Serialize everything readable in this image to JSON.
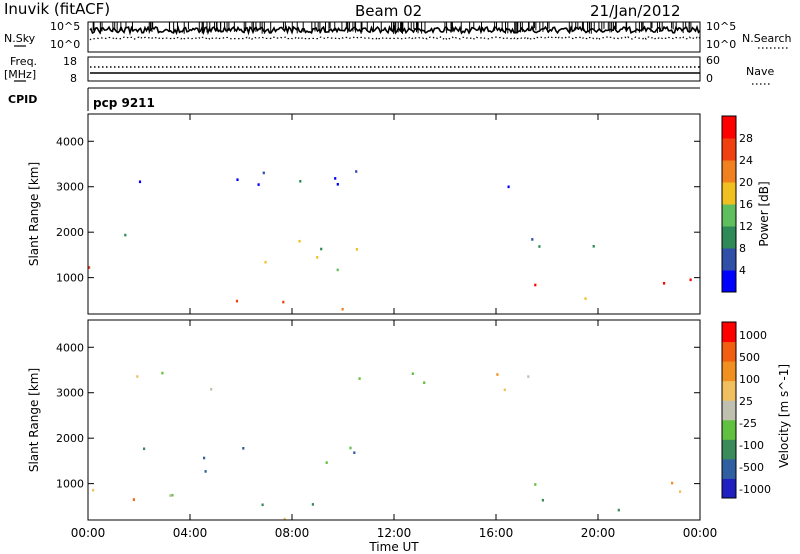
{
  "header": {
    "station": "Inuvik (fitACF)",
    "beam": "Beam 02",
    "date": "21/Jan/2012"
  },
  "top_panels": {
    "nsky_label": "N.Sky",
    "nsky_ticks": [
      "10^5",
      "10^0"
    ],
    "nsearch_label": "N.Search",
    "nsearch_ticks": [
      "10^5",
      "10^0"
    ],
    "freq_label": "Freq.",
    "freq_unit": "[MHz]",
    "freq_ticks": [
      "18",
      "8"
    ],
    "nave_label": "Nave",
    "nave_ticks": [
      "60",
      "0"
    ],
    "cpid_label": "CPID",
    "cpid_value": "pcp 9211"
  },
  "colors": {
    "power_scale": [
      "#0000ff",
      "#2f4fa8",
      "#2e8b57",
      "#5fbf5f",
      "#f0c020",
      "#f08020",
      "#f04010",
      "#ff0000"
    ],
    "velocity_scale": [
      "#2020c0",
      "#2f5fa0",
      "#3a8a5a",
      "#60c040",
      "#c0c0b0",
      "#f0c060",
      "#f09020",
      "#f06010",
      "#ff0000"
    ]
  },
  "chart_data": [
    {
      "type": "heatmap",
      "name_printed": "",
      "ylabel": "Slant Range [km]",
      "yticks": [
        "1000",
        "2000",
        "3000",
        "4000"
      ],
      "ylim": [
        200,
        4600
      ],
      "xlim": [
        0,
        24
      ],
      "colorbar_label": "Power [dB]",
      "colorbar_ticks": [
        "4",
        "8",
        "12",
        "16",
        "20",
        "24",
        "28"
      ],
      "regions": [
        {
          "t": [
            0,
            2
          ],
          "r": [
            700,
            1300
          ],
          "level": 0.85
        },
        {
          "t": [
            1,
            3
          ],
          "r": [
            1600,
            2100
          ],
          "level": 0.35
        },
        {
          "t": [
            3,
            11.5
          ],
          "r": [
            250,
            600
          ],
          "level": 0.75
        },
        {
          "t": [
            4.5,
            11
          ],
          "r": [
            1100,
            1900
          ],
          "level": 0.45
        },
        {
          "t": [
            1,
            18
          ],
          "r": [
            3000,
            3500
          ],
          "level": 0.1
        },
        {
          "t": [
            17,
            18.5
          ],
          "r": [
            600,
            1100
          ],
          "level": 0.85
        },
        {
          "t": [
            19,
            21
          ],
          "r": [
            250,
            600
          ],
          "level": 0.6
        },
        {
          "t": [
            21,
            24
          ],
          "r": [
            600,
            1200
          ],
          "level": 0.9
        },
        {
          "t": [
            16.5,
            20
          ],
          "r": [
            1400,
            2200
          ],
          "level": 0.25
        }
      ]
    },
    {
      "type": "heatmap",
      "name_printed": "",
      "ylabel": "Slant Range [km]",
      "yticks": [
        "1000",
        "2000",
        "3000",
        "4000"
      ],
      "ylim": [
        200,
        4600
      ],
      "xlim": [
        0,
        24
      ],
      "xlabel": "Time UT",
      "xticks": [
        "00:00",
        "04:00",
        "08:00",
        "12:00",
        "16:00",
        "20:00",
        "00:00"
      ],
      "colorbar_label": "Velocity [m s^-1]",
      "colorbar_ticks": [
        "1000",
        "500",
        "100",
        "25",
        "-25",
        "-100",
        "-500",
        "-1000"
      ],
      "regions": [
        {
          "t": [
            0,
            2
          ],
          "r": [
            600,
            1300
          ],
          "level": 0.7
        },
        {
          "t": [
            2,
            4
          ],
          "r": [
            600,
            1800
          ],
          "level": 0.35
        },
        {
          "t": [
            4.5,
            11
          ],
          "r": [
            1100,
            1900
          ],
          "level": 0.3
        },
        {
          "t": [
            4,
            11.5
          ],
          "r": [
            250,
            600
          ],
          "level": 0.45
        },
        {
          "t": [
            1,
            18
          ],
          "r": [
            3000,
            3500
          ],
          "level": 0.5
        },
        {
          "t": [
            17,
            19
          ],
          "r": [
            500,
            1200
          ],
          "level": 0.3
        },
        {
          "t": [
            19,
            21
          ],
          "r": [
            250,
            600
          ],
          "level": 0.3
        },
        {
          "t": [
            21,
            24
          ],
          "r": [
            600,
            1200
          ],
          "level": 0.75
        }
      ]
    }
  ]
}
